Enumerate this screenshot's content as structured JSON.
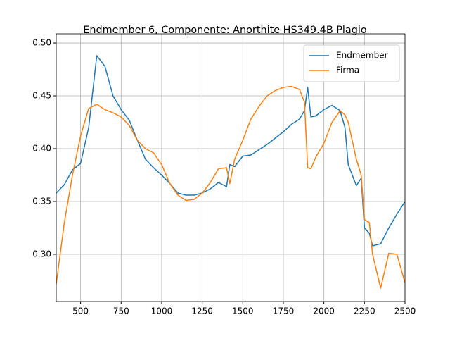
{
  "chart_data": {
    "type": "line",
    "title": "Endmember 6, Componente: Anorthite HS349.4B Plagio",
    "x": [
      350,
      400,
      450,
      500,
      550,
      600,
      650,
      700,
      750,
      800,
      850,
      900,
      950,
      1000,
      1050,
      1100,
      1150,
      1200,
      1250,
      1300,
      1350,
      1400,
      1420,
      1450,
      1500,
      1550,
      1600,
      1650,
      1700,
      1750,
      1800,
      1850,
      1880,
      1900,
      1920,
      1950,
      2000,
      2050,
      2100,
      2130,
      2150,
      2200,
      2230,
      2250,
      2280,
      2300,
      2350,
      2400,
      2450,
      2500
    ],
    "series": [
      {
        "name": "Endmember",
        "color": "#1f77b4",
        "values": [
          0.358,
          0.366,
          0.38,
          0.386,
          0.42,
          0.488,
          0.478,
          0.45,
          0.437,
          0.427,
          0.408,
          0.39,
          0.382,
          0.375,
          0.367,
          0.358,
          0.356,
          0.356,
          0.358,
          0.362,
          0.368,
          0.364,
          0.385,
          0.383,
          0.393,
          0.394,
          0.399,
          0.404,
          0.41,
          0.416,
          0.423,
          0.428,
          0.436,
          0.458,
          0.43,
          0.431,
          0.437,
          0.441,
          0.436,
          0.42,
          0.385,
          0.365,
          0.372,
          0.325,
          0.32,
          0.308,
          0.31,
          0.325,
          0.338,
          0.35
        ]
      },
      {
        "name": "Firma",
        "color": "#ff7f0e",
        "values": [
          0.272,
          0.33,
          0.375,
          0.412,
          0.438,
          0.442,
          0.437,
          0.434,
          0.43,
          0.422,
          0.408,
          0.4,
          0.396,
          0.385,
          0.367,
          0.356,
          0.351,
          0.352,
          0.358,
          0.368,
          0.381,
          0.382,
          0.367,
          0.39,
          0.408,
          0.428,
          0.44,
          0.45,
          0.455,
          0.458,
          0.459,
          0.456,
          0.444,
          0.382,
          0.381,
          0.392,
          0.405,
          0.425,
          0.436,
          0.432,
          0.425,
          0.39,
          0.375,
          0.333,
          0.33,
          0.3,
          0.268,
          0.301,
          0.3,
          0.273
        ]
      }
    ],
    "xlim": [
      350,
      2500
    ],
    "ylim": [
      0.2553,
      0.5087
    ],
    "xticks": [
      500,
      750,
      1000,
      1250,
      1500,
      1750,
      2000,
      2250,
      2500
    ],
    "yticks": [
      {
        "value": 0.3,
        "label": "0.30"
      },
      0.35,
      {
        "value": 0.4,
        "label": "0.40"
      },
      0.45,
      {
        "value": 0.5,
        "label": "0.50"
      }
    ],
    "grid": true,
    "legend": "upper right"
  }
}
